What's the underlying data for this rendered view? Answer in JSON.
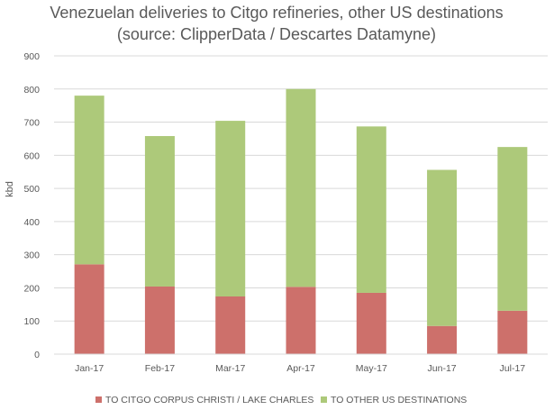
{
  "chart_data": {
    "type": "bar",
    "stacked": true,
    "title_lines": [
      "Venezuelan deliveries to Citgo refineries, other US destinations",
      "(source: ClipperData / Descartes Datamyne)"
    ],
    "xlabel": "",
    "ylabel": "kbd",
    "ylim": [
      0,
      900
    ],
    "yticks": [
      0,
      100,
      200,
      300,
      400,
      500,
      600,
      700,
      800,
      900
    ],
    "grid": true,
    "legend_position": "bottom",
    "categories": [
      "Jan-17",
      "Feb-17",
      "Mar-17",
      "Apr-17",
      "May-17",
      "Jun-17",
      "Jul-17"
    ],
    "series": [
      {
        "name": "TO CITGO CORPUS CHRISTI / LAKE CHARLES",
        "color": "#cd706b",
        "values": [
          271,
          204,
          174,
          203,
          185,
          85,
          131
        ]
      },
      {
        "name": "TO OTHER US DESTINATIONS",
        "color": "#adc97a",
        "values": [
          509,
          454,
          530,
          597,
          502,
          471,
          494
        ]
      }
    ]
  }
}
